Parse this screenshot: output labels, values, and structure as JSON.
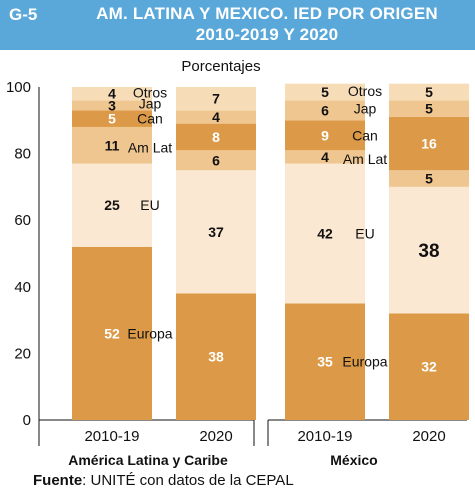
{
  "header": {
    "code": "G-5",
    "title_line1": "AM. LATINA Y MEXICO. IED POR ORIGEN",
    "title_line2": "2010-2019 Y 2020"
  },
  "source": {
    "label": "Fuente",
    "text": ": UNITÉ con datos de la CEPAL"
  },
  "colors": {
    "Europa": "#dc9a48",
    "EU": "#fbe8d2",
    "Am Lat": "#f0c690",
    "Can": "#dc9a48",
    "Jap": "#f0c690",
    "Otros": "#f7dcb8",
    "header": "#5aa7da"
  },
  "chart_data": {
    "type": "bar",
    "stacked": true,
    "ylabel": "Porcentajes",
    "ylim": [
      0,
      100
    ],
    "yticks": [
      0,
      20,
      40,
      60,
      80,
      100
    ],
    "gridlines": false,
    "legend": "inline segment labels between bars",
    "groups": [
      {
        "name": "América Latina y Caribe",
        "categories": [
          "2010-19",
          "2020"
        ],
        "series": [
          {
            "name": "Europa",
            "values": [
              52,
              38
            ]
          },
          {
            "name": "EU",
            "values": [
              25,
              37
            ]
          },
          {
            "name": "Am Lat",
            "values": [
              11,
              6
            ]
          },
          {
            "name": "Can",
            "values": [
              5,
              8
            ]
          },
          {
            "name": "Jap",
            "values": [
              3,
              4
            ]
          },
          {
            "name": "Otros",
            "values": [
              4,
              7
            ]
          }
        ]
      },
      {
        "name": "México",
        "categories": [
          "2010-19",
          "2020"
        ],
        "series": [
          {
            "name": "Europa",
            "values": [
              35,
              32
            ]
          },
          {
            "name": "EU",
            "values": [
              42,
              38
            ]
          },
          {
            "name": "Am Lat",
            "values": [
              4,
              5
            ]
          },
          {
            "name": "Can",
            "values": [
              9,
              16
            ]
          },
          {
            "name": "Jap",
            "values": [
              6,
              5
            ]
          },
          {
            "name": "Otros",
            "values": [
              5,
              5
            ]
          }
        ]
      }
    ]
  }
}
